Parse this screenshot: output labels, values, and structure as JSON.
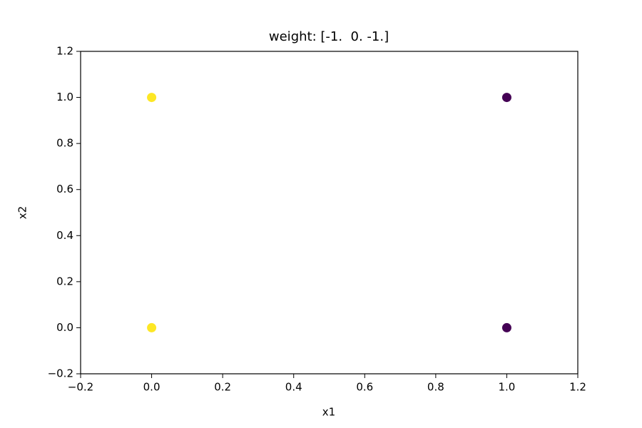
{
  "chart_data": {
    "type": "scatter",
    "title": "weight: [-1.  0. -1.]",
    "x_label": "x1",
    "y_label": "x2",
    "x": [
      0,
      0,
      1,
      1
    ],
    "values": [
      1,
      0,
      1,
      0
    ],
    "colors": [
      "#fde725",
      "#fde725",
      "#440154",
      "#440154"
    ],
    "xlim": [
      -0.2,
      1.2
    ],
    "xticks": [
      {
        "value": -0.2,
        "label": "−0.2"
      },
      {
        "value": 0,
        "label": "0.0"
      },
      0.2,
      0.4,
      0.6,
      0.8,
      {
        "value": 1,
        "label": "1.0"
      },
      1.2
    ],
    "ylim": [
      -0.2,
      1.2
    ],
    "yticks": [
      {
        "value": -0.2,
        "label": "−0.2"
      },
      {
        "value": 0,
        "label": "0.0"
      },
      0.2,
      0.4,
      0.6,
      0.8,
      {
        "value": 1,
        "label": "1.0"
      },
      1.2
    ],
    "grid": false
  }
}
